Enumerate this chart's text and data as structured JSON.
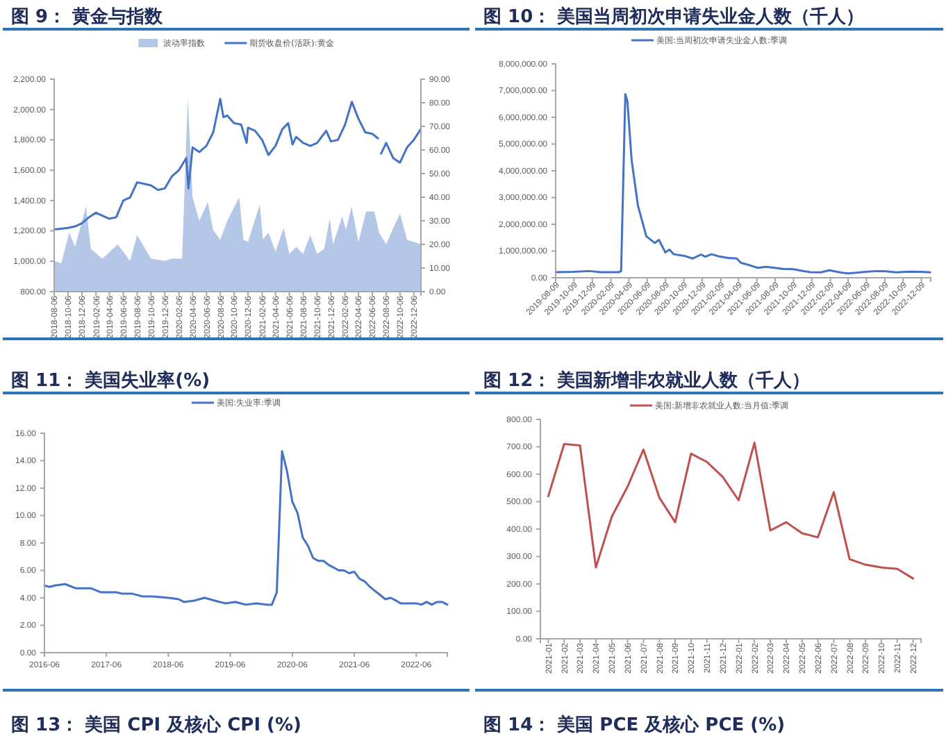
{
  "chart_data": [
    {
      "type": "line",
      "title": "图 9： 黄金与指数",
      "legend": "top",
      "xlim": [
        "2018-08-06",
        "2023-01-06"
      ],
      "xticks": [
        "2018-08-06",
        "2018-10-06",
        "2018-12-06",
        "2019-02-06",
        "2019-04-06",
        "2019-06-06",
        "2019-08-06",
        "2019-10-06",
        "2019-12-06",
        "2020-02-06",
        "2020-04-06",
        "2020-06-06",
        "2020-08-06",
        "2020-10-06",
        "2020-12-06",
        "2021-02-06",
        "2021-04-06",
        "2021-06-06",
        "2021-08-06",
        "2021-10-06",
        "2021-12-06",
        "2022-02-06",
        "2022-04-06",
        "2022-06-06",
        "2022-08-06",
        "2022-10-06",
        "2022-12-06"
      ],
      "ylim": [
        800,
        2200
      ],
      "yticks": [
        {
          "value": 800,
          "label": "800.00"
        },
        {
          "value": 1000,
          "label": "1,000.00"
        },
        {
          "value": 1200,
          "label": "1,200.00"
        },
        {
          "value": 1400,
          "label": "1,400.00"
        },
        {
          "value": 1600,
          "label": "1,600.00"
        },
        {
          "value": 1800,
          "label": "1,800.00"
        },
        {
          "value": 2000,
          "label": "2,000.00"
        },
        {
          "value": 2200,
          "label": "2,200.00"
        }
      ],
      "y2lim": [
        0,
        90
      ],
      "y2ticks": [
        {
          "value": 0,
          "label": "0.00"
        },
        {
          "value": 10,
          "label": "10.00"
        },
        {
          "value": 20,
          "label": "20.00"
        },
        {
          "value": 30,
          "label": "30.00"
        },
        {
          "value": 40,
          "label": "40.00"
        },
        {
          "value": 50,
          "label": "50.00"
        },
        {
          "value": 60,
          "label": "60.00"
        },
        {
          "value": 70,
          "label": "70.00"
        },
        {
          "value": 80,
          "label": "80.00"
        },
        {
          "value": 90,
          "label": "90.00"
        }
      ],
      "series": [
        {
          "name": "波动率指数",
          "type": "area",
          "axis": "y2",
          "color": "#b4c7e7",
          "x": [
            "2018-08-06",
            "2018-09-06",
            "2018-10-11",
            "2018-11-06",
            "2018-12-24",
            "2019-01-15",
            "2019-03-06",
            "2019-05-13",
            "2019-07-06",
            "2019-08-06",
            "2019-10-06",
            "2019-12-06",
            "2020-01-06",
            "2020-02-20",
            "2020-03-16",
            "2020-04-06",
            "2020-05-06",
            "2020-06-12",
            "2020-07-06",
            "2020-08-06",
            "2020-09-06",
            "2020-10-28",
            "2020-11-16",
            "2020-12-06",
            "2021-01-27",
            "2021-02-10",
            "2021-03-06",
            "2021-04-06",
            "2021-05-12",
            "2021-06-06",
            "2021-07-06",
            "2021-08-06",
            "2021-09-06",
            "2021-10-06",
            "2021-11-06",
            "2021-12-01",
            "2021-12-15",
            "2022-01-25",
            "2022-02-10",
            "2022-03-07",
            "2022-04-06",
            "2022-05-10",
            "2022-06-15",
            "2022-07-06",
            "2022-08-06",
            "2022-09-06",
            "2022-10-06",
            "2022-11-06",
            "2022-12-06",
            "2023-01-06"
          ],
          "values": [
            13,
            12,
            25,
            19,
            36,
            18,
            14,
            20,
            13,
            24,
            14,
            13,
            14,
            14,
            82,
            40,
            30,
            38,
            26,
            22,
            30,
            40,
            22,
            21,
            37,
            22,
            25,
            17,
            27,
            16,
            19,
            16,
            24,
            16,
            18,
            31,
            20,
            32,
            26,
            36,
            21,
            34,
            34,
            25,
            20,
            27,
            33,
            22,
            21,
            20
          ]
        },
        {
          "name": "期货收盘价(活跃):黄金",
          "color": "#4472c4",
          "x": [
            "2018-08-06",
            "2018-10-06",
            "2018-11-06",
            "2018-12-06",
            "2019-01-06",
            "2019-02-06",
            "2019-03-06",
            "2019-04-06",
            "2019-05-06",
            "2019-06-06",
            "2019-07-06",
            "2019-08-06",
            "2019-09-06",
            "2019-10-06",
            "2019-11-06",
            "2019-12-06",
            "2020-01-06",
            "2020-02-06",
            "2020-03-09",
            "2020-03-19",
            "2020-04-06",
            "2020-05-06",
            "2020-06-06",
            "2020-07-06",
            "2020-08-06",
            "2020-08-20",
            "2020-09-06",
            "2020-10-06",
            "2020-11-06",
            "2020-11-30",
            "2020-12-06",
            "2021-01-06",
            "2021-02-06",
            "2021-03-06",
            "2021-04-06",
            "2021-05-06",
            "2021-06-01",
            "2021-06-20",
            "2021-07-06",
            "2021-08-06",
            "2021-09-06",
            "2021-10-06",
            "2021-11-15",
            "2021-12-06",
            "2022-01-06",
            "2022-02-06",
            "2022-03-08",
            "2022-04-06",
            "2022-05-06",
            "2022-06-06",
            "2022-07-01",
            "2022-07-08",
            "2022-07-15",
            "2022-08-06",
            "2022-09-06",
            "2022-10-06",
            "2022-11-06",
            "2022-12-06",
            "2023-01-05"
          ],
          "values": [
            1210,
            1220,
            1230,
            1250,
            1290,
            1320,
            1300,
            1280,
            1290,
            1400,
            1420,
            1520,
            1510,
            1500,
            1470,
            1480,
            1560,
            1600,
            1680,
            1480,
            1750,
            1720,
            1760,
            1850,
            2070,
            1950,
            1960,
            1910,
            1900,
            1780,
            1880,
            1860,
            1800,
            1700,
            1760,
            1870,
            1910,
            1770,
            1820,
            1780,
            1760,
            1780,
            1860,
            1790,
            1800,
            1900,
            2050,
            1940,
            1850,
            1840,
            1810,
            null,
            1710,
            1780,
            1680,
            1650,
            1750,
            1800,
            1870
          ]
        }
      ]
    },
    {
      "type": "line",
      "title": "图 10： 美国当周初次申请失业金人数（千人）",
      "legend": "top",
      "xlim": [
        "2019-08-09",
        "2023-01-09"
      ],
      "xticks": [
        "2019-08-09",
        "2019-10-09",
        "2019-12-09",
        "2020-02-09",
        "2020-04-09",
        "2020-06-09",
        "2020-08-09",
        "2020-10-09",
        "2020-12-09",
        "2021-02-09",
        "2021-04-09",
        "2021-06-09",
        "2021-08-09",
        "2021-10-09",
        "2021-12-09",
        "2022-02-09",
        "2022-04-09",
        "2022-06-09",
        "2022-08-09",
        "2022-10-09",
        "2022-12-09"
      ],
      "ylim": [
        0,
        8000000
      ],
      "yticks": [
        {
          "value": 0,
          "label": "0.00"
        },
        {
          "value": 1000000,
          "label": "1,000,000.00"
        },
        {
          "value": 2000000,
          "label": "2,000,000.00"
        },
        {
          "value": 3000000,
          "label": "3,000,000.00"
        },
        {
          "value": 4000000,
          "label": "4,000,000.00"
        },
        {
          "value": 5000000,
          "label": "5,000,000.00"
        },
        {
          "value": 6000000,
          "label": "6,000,000.00"
        },
        {
          "value": 7000000,
          "label": "7,000,000.00"
        },
        {
          "value": 8000000,
          "label": "8,000,000.00"
        }
      ],
      "series": [
        {
          "name": "美国:当周初次申请失业金人数:季调",
          "color": "#4472c4",
          "x": [
            "2019-08-09",
            "2019-10-05",
            "2019-11-30",
            "2020-01-04",
            "2020-03-07",
            "2020-03-14",
            "2020-03-28",
            "2020-04-04",
            "2020-04-18",
            "2020-05-09",
            "2020-06-06",
            "2020-07-04",
            "2020-07-18",
            "2020-08-08",
            "2020-08-22",
            "2020-09-05",
            "2020-10-10",
            "2020-11-07",
            "2020-12-05",
            "2020-12-19",
            "2021-01-09",
            "2021-02-06",
            "2021-03-06",
            "2021-04-03",
            "2021-04-17",
            "2021-05-15",
            "2021-06-12",
            "2021-07-10",
            "2021-08-07",
            "2021-09-04",
            "2021-10-09",
            "2021-11-06",
            "2021-12-04",
            "2022-01-08",
            "2022-02-05",
            "2022-03-19",
            "2022-04-09",
            "2022-05-07",
            "2022-06-11",
            "2022-07-16",
            "2022-08-13",
            "2022-09-17",
            "2022-10-15",
            "2022-11-12",
            "2022-12-10",
            "2023-01-07"
          ],
          "values": [
            210000,
            220000,
            250000,
            210000,
            210000,
            250000,
            6870000,
            6600000,
            4400000,
            2700000,
            1550000,
            1300000,
            1420000,
            950000,
            1050000,
            880000,
            820000,
            720000,
            870000,
            790000,
            880000,
            790000,
            740000,
            720000,
            560000,
            470000,
            370000,
            410000,
            370000,
            330000,
            320000,
            260000,
            210000,
            200000,
            280000,
            190000,
            160000,
            190000,
            230000,
            250000,
            240000,
            200000,
            220000,
            230000,
            220000,
            200000
          ]
        }
      ]
    },
    {
      "type": "line",
      "title": "图 11： 美国失业率(%)",
      "legend": "top",
      "xlim": [
        "2016-06",
        "2022-12"
      ],
      "xticks": [
        "2016-06",
        "2017-06",
        "2018-06",
        "2019-06",
        "2020-06",
        "2021-06",
        "2022-06"
      ],
      "ylim": [
        0,
        16
      ],
      "yticks": [
        {
          "value": 0,
          "label": "0.00"
        },
        {
          "value": 2,
          "label": "2.00"
        },
        {
          "value": 4,
          "label": "4.00"
        },
        {
          "value": 6,
          "label": "6.00"
        },
        {
          "value": 8,
          "label": "8.00"
        },
        {
          "value": 10,
          "label": "10.00"
        },
        {
          "value": 12,
          "label": "12.00"
        },
        {
          "value": 14,
          "label": "14.00"
        },
        {
          "value": 16,
          "label": "16.00"
        }
      ],
      "annotations": [
        "图 13： 美国 CPI 及核心 CPI (%)"
      ],
      "series": [
        {
          "name": "美国:失业率:季调",
          "color": "#4472c4",
          "x": [
            "2016-06",
            "2016-07",
            "2016-08",
            "2016-10",
            "2016-12",
            "2017-03",
            "2017-05",
            "2017-08",
            "2017-09",
            "2017-11",
            "2018-01",
            "2018-03",
            "2018-06",
            "2018-08",
            "2018-09",
            "2018-11",
            "2019-01",
            "2019-03",
            "2019-05",
            "2019-07",
            "2019-09",
            "2019-11",
            "2020-01",
            "2020-02",
            "2020-03",
            "2020-04",
            "2020-05",
            "2020-06",
            "2020-07",
            "2020-08",
            "2020-09",
            "2020-10",
            "2020-11",
            "2020-12",
            "2021-01",
            "2021-02",
            "2021-03",
            "2021-04",
            "2021-05",
            "2021-06",
            "2021-07",
            "2021-08",
            "2021-09",
            "2021-10",
            "2021-11",
            "2021-12",
            "2022-01",
            "2022-02",
            "2022-03",
            "2022-04",
            "2022-05",
            "2022-06",
            "2022-07",
            "2022-08",
            "2022-09",
            "2022-10",
            "2022-11",
            "2022-12"
          ],
          "values": [
            4.9,
            4.8,
            4.9,
            5.0,
            4.7,
            4.7,
            4.4,
            4.4,
            4.3,
            4.3,
            4.1,
            4.1,
            4.0,
            3.9,
            3.7,
            3.8,
            4.0,
            3.8,
            3.6,
            3.7,
            3.5,
            3.6,
            3.5,
            3.5,
            4.4,
            14.7,
            13.2,
            11.0,
            10.2,
            8.4,
            7.8,
            6.9,
            6.7,
            6.7,
            6.4,
            6.2,
            6.0,
            6.0,
            5.8,
            5.9,
            5.4,
            5.2,
            4.8,
            4.5,
            4.2,
            3.9,
            4.0,
            3.8,
            3.6,
            3.6,
            3.6,
            3.6,
            3.5,
            3.7,
            3.5,
            3.7,
            3.7,
            3.5
          ]
        }
      ]
    },
    {
      "type": "line",
      "title": "图 12： 美国新增非农就业人数（千人）",
      "legend": "top",
      "categories": [
        "2021-01",
        "2021-02",
        "2021-03",
        "2021-04",
        "2021-05",
        "2021-06",
        "2021-07",
        "2021-08",
        "2021-09",
        "2021-10",
        "2021-11",
        "2021-12",
        "2022-01",
        "2022-02",
        "2022-03",
        "2022-04",
        "2022-05",
        "2022-06",
        "2022-07",
        "2022-08",
        "2022-09",
        "2022-10",
        "2022-11",
        "2022-12"
      ],
      "ylim": [
        0,
        800
      ],
      "yticks": [
        {
          "value": 0,
          "label": "0.00"
        },
        {
          "value": 100,
          "label": "100.00"
        },
        {
          "value": 200,
          "label": "200.00"
        },
        {
          "value": 300,
          "label": "300.00"
        },
        {
          "value": 400,
          "label": "400.00"
        },
        {
          "value": 500,
          "label": "500.00"
        },
        {
          "value": 600,
          "label": "600.00"
        },
        {
          "value": 700,
          "label": "700.00"
        },
        {
          "value": 800,
          "label": "800.00"
        }
      ],
      "annotations": [
        "图 14： 美国 PCE 及核心 PCE (%)"
      ],
      "series": [
        {
          "name": "美国:新增非农就业人数:当月值:季调",
          "color": "#c0504d",
          "values": [
            520,
            710,
            705,
            260,
            445,
            555,
            690,
            515,
            425,
            675,
            645,
            590,
            505,
            715,
            395,
            425,
            385,
            370,
            535,
            290,
            270,
            260,
            255,
            220
          ]
        }
      ]
    }
  ]
}
